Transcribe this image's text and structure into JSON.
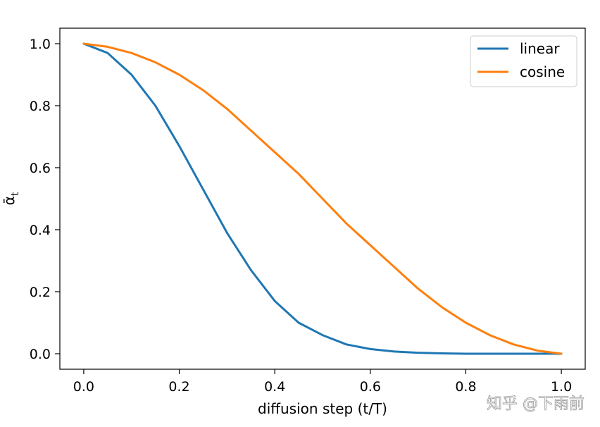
{
  "chart_data": {
    "type": "line",
    "title": "",
    "xlabel": "diffusion step (t/T)",
    "ylabel": "ᾱ",
    "ylabel_subscript": "t",
    "xlim": [
      -0.05,
      1.05
    ],
    "ylim": [
      -0.05,
      1.05
    ],
    "xticks": [
      "0.0",
      "0.2",
      "0.4",
      "0.6",
      "0.8",
      "1.0"
    ],
    "yticks": [
      "0.0",
      "0.2",
      "0.4",
      "0.6",
      "0.8",
      "1.0"
    ],
    "grid": false,
    "legend_position": "top-right",
    "x": [
      0.0,
      0.05,
      0.1,
      0.15,
      0.2,
      0.25,
      0.3,
      0.35,
      0.4,
      0.45,
      0.5,
      0.55,
      0.6,
      0.65,
      0.7,
      0.75,
      0.8,
      0.85,
      0.9,
      0.95,
      1.0
    ],
    "series": [
      {
        "name": "linear",
        "color": "#1f77b4",
        "values": [
          1.0,
          0.97,
          0.9,
          0.8,
          0.67,
          0.53,
          0.39,
          0.27,
          0.17,
          0.1,
          0.06,
          0.03,
          0.015,
          0.007,
          0.003,
          0.001,
          0.0,
          0.0,
          0.0,
          0.0,
          0.0
        ]
      },
      {
        "name": "cosine",
        "color": "#ff7f0e",
        "values": [
          1.0,
          0.99,
          0.97,
          0.94,
          0.9,
          0.85,
          0.79,
          0.72,
          0.65,
          0.58,
          0.5,
          0.42,
          0.35,
          0.28,
          0.21,
          0.15,
          0.1,
          0.06,
          0.03,
          0.01,
          0.0
        ]
      }
    ]
  },
  "watermark": "知乎 @下雨前"
}
